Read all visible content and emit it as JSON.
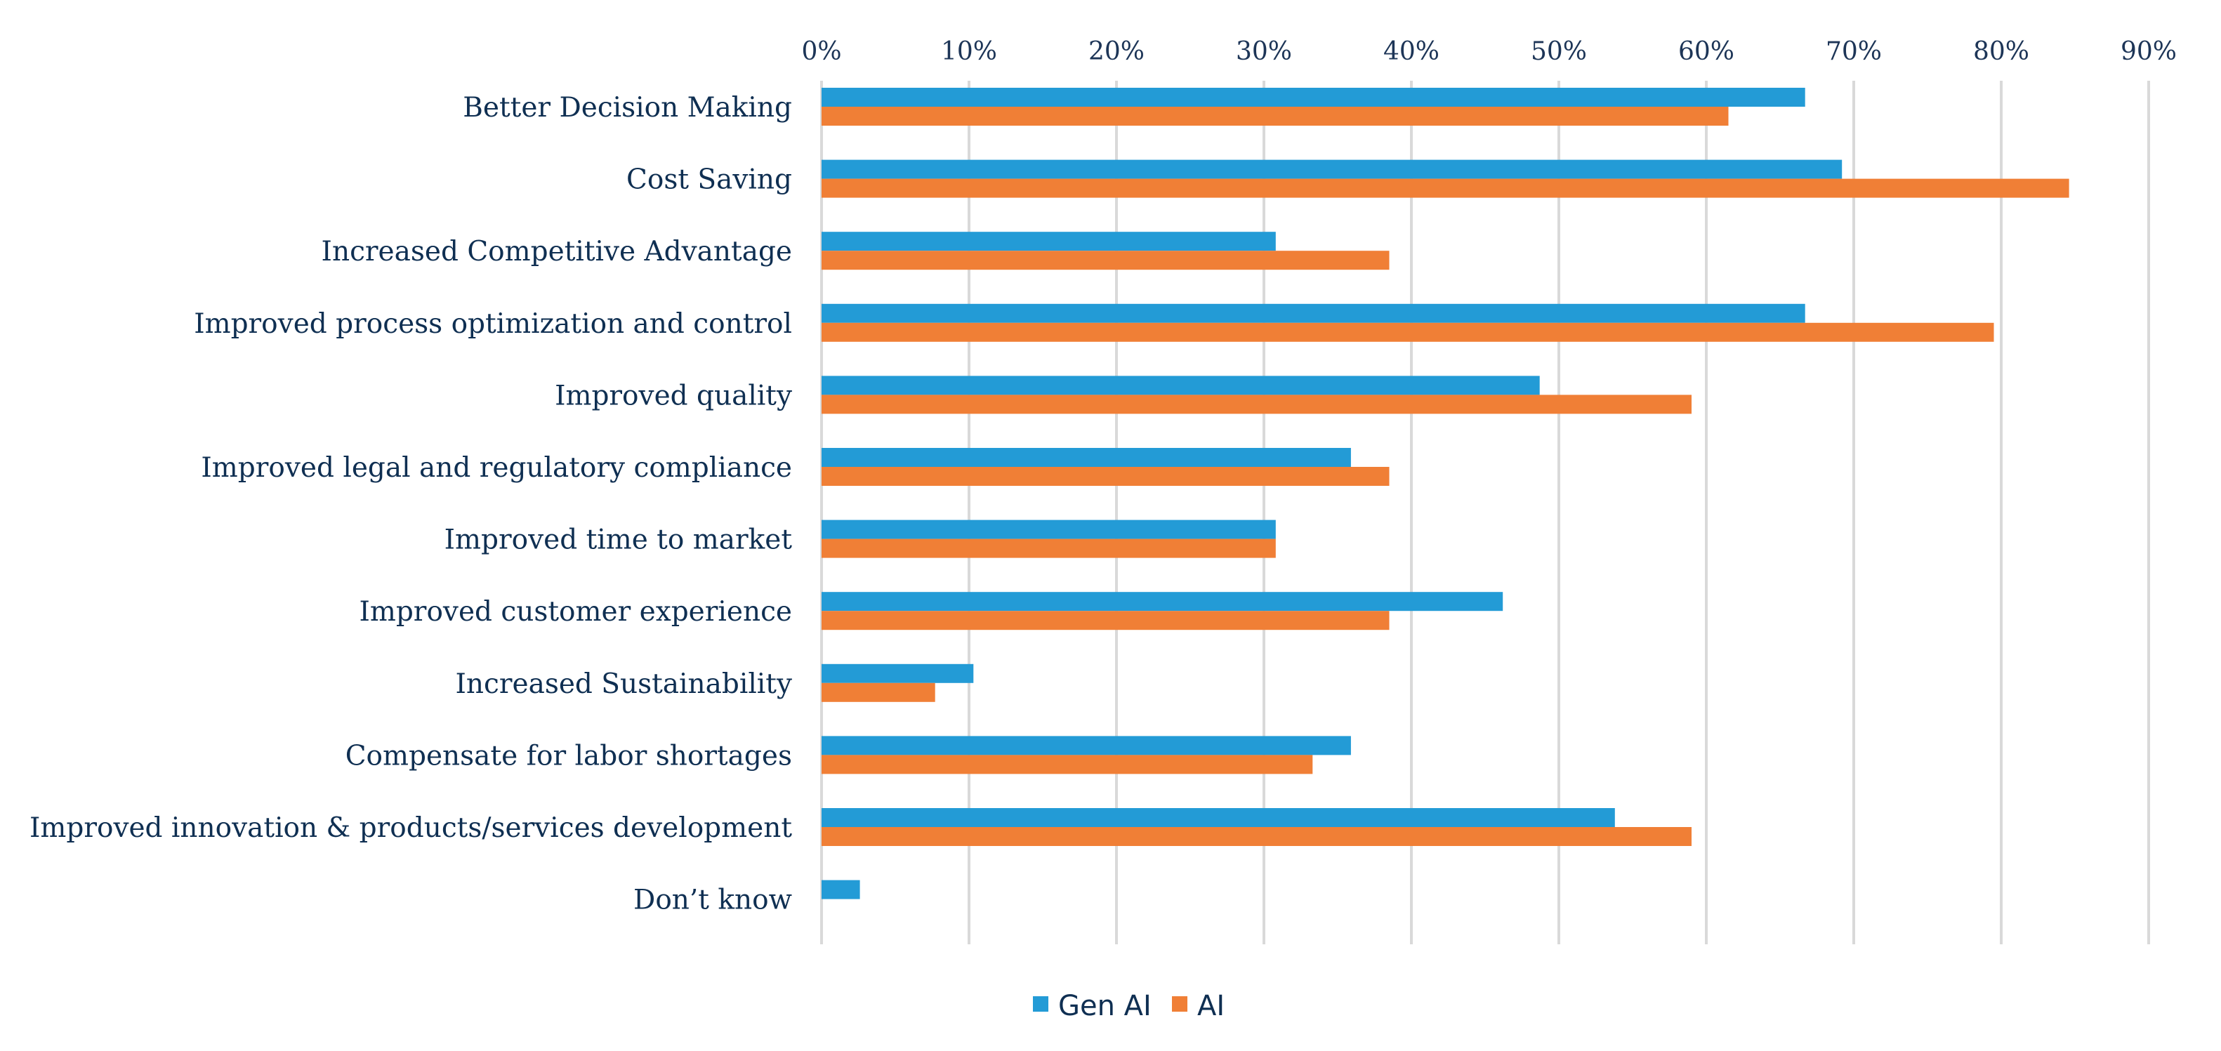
{
  "chart_data": {
    "type": "bar",
    "orientation": "horizontal",
    "title": "",
    "xlabel": "",
    "ylabel": "",
    "xlim": [
      0,
      0.9
    ],
    "x_ticks": [
      0,
      0.1,
      0.2,
      0.3,
      0.4,
      0.5,
      0.6,
      0.7,
      0.8,
      0.9
    ],
    "x_tick_labels": [
      "0%",
      "10%",
      "20%",
      "30%",
      "40%",
      "50%",
      "60%",
      "70%",
      "80%",
      "90%"
    ],
    "x_axis_position": "top",
    "grid": "vertical",
    "legend_position": "bottom",
    "categories": [
      "Better Decision Making",
      "Cost Saving",
      "Increased Competitive Advantage",
      "Improved process optimization and control",
      "Improved quality",
      "Improved legal and regulatory compliance",
      "Improved time to market",
      "Improved customer experience",
      "Increased Sustainability",
      "Compensate for labor shortages",
      "Improved innovation & products/services development",
      "Don’t know"
    ],
    "series": [
      {
        "name": "Gen AI",
        "color": "#239bd6",
        "values": [
          0.667,
          0.692,
          0.308,
          0.667,
          0.487,
          0.359,
          0.308,
          0.462,
          0.103,
          0.359,
          0.538,
          0.026
        ]
      },
      {
        "name": "AI",
        "color": "#f07f36",
        "values": [
          0.615,
          0.846,
          0.385,
          0.795,
          0.59,
          0.385,
          0.308,
          0.385,
          0.077,
          0.333,
          0.59,
          0
        ]
      }
    ]
  }
}
